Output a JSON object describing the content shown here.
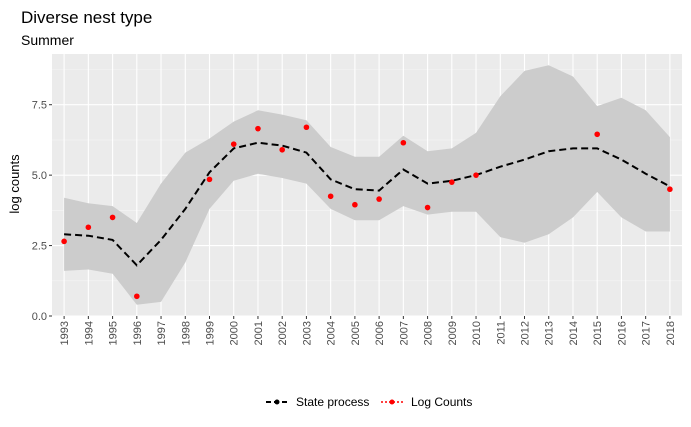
{
  "chart_data": {
    "type": "line",
    "title": "Diverse nest type",
    "subtitle": "Summer",
    "xlabel": "",
    "ylabel": "log counts",
    "ylim": [
      0,
      9.3
    ],
    "yticks": [
      0.0,
      2.5,
      5.0,
      7.5
    ],
    "ytick_labels": [
      "0.0",
      "2.5",
      "5.0",
      "7.5"
    ],
    "x": [
      1993,
      1994,
      1995,
      1996,
      1997,
      1998,
      1999,
      2000,
      2001,
      2002,
      2003,
      2004,
      2005,
      2006,
      2007,
      2008,
      2009,
      2010,
      2011,
      2012,
      2013,
      2014,
      2015,
      2016,
      2017,
      2018
    ],
    "grid": true,
    "legend_position": "bottom",
    "series": [
      {
        "name": "State process",
        "style": "dashed-line",
        "color": "#000000",
        "values": [
          2.9,
          2.85,
          2.7,
          1.8,
          2.7,
          3.8,
          5.1,
          5.95,
          6.15,
          6.05,
          5.8,
          4.85,
          4.5,
          4.45,
          5.2,
          4.7,
          4.8,
          5.0,
          5.3,
          5.55,
          5.85,
          5.95,
          5.95,
          5.55,
          5.05,
          4.6
        ]
      },
      {
        "name": "Log Counts",
        "style": "points",
        "color": "#ff0000",
        "x": [
          1993,
          1994,
          1995,
          1996,
          1999,
          2000,
          2001,
          2002,
          2003,
          2004,
          2005,
          2006,
          2007,
          2008,
          2009,
          2010,
          2015,
          2018
        ],
        "values": [
          2.65,
          3.15,
          3.5,
          0.7,
          4.85,
          6.1,
          6.65,
          5.9,
          6.7,
          4.25,
          3.95,
          4.15,
          6.15,
          3.85,
          4.75,
          5.0,
          6.45,
          4.5
        ]
      }
    ],
    "ribbon": {
      "color": "#cccccc",
      "lower": [
        1.6,
        1.65,
        1.5,
        0.4,
        0.5,
        1.9,
        3.8,
        4.8,
        5.05,
        4.9,
        4.7,
        3.8,
        3.4,
        3.4,
        3.9,
        3.6,
        3.7,
        3.7,
        2.8,
        2.6,
        2.9,
        3.5,
        4.4,
        3.5,
        3.0,
        3.0
      ],
      "upper": [
        4.2,
        4.0,
        3.9,
        3.3,
        4.7,
        5.8,
        6.3,
        6.9,
        7.3,
        7.15,
        6.95,
        6.0,
        5.65,
        5.65,
        6.4,
        5.85,
        5.95,
        6.5,
        7.8,
        8.7,
        8.9,
        8.5,
        7.45,
        7.75,
        7.3,
        6.35
      ]
    }
  }
}
